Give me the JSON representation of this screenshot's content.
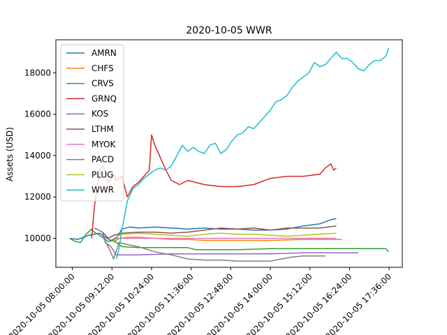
{
  "chart_data": {
    "type": "line",
    "title": "2020-10-05 WWR",
    "xlabel": "",
    "ylabel": "Assets (USD)",
    "x_ticks": [
      "2020-10-05 08:00:00",
      "2020-10-05 09:12:00",
      "2020-10-05 10:24:00",
      "2020-10-05 11:36:00",
      "2020-10-05 12:48:00",
      "2020-10-05 14:00:00",
      "2020-10-05 15:12:00",
      "2020-10-05 16:24:00",
      "2020-10-05 17:36:00"
    ],
    "y_ticks": [
      10000,
      12000,
      14000,
      16000,
      18000
    ],
    "x_range": [
      "07:30",
      "18:00"
    ],
    "ylim": [
      8600,
      19600
    ],
    "grid": false,
    "legend": "upper-left",
    "series": [
      {
        "name": "AMRN",
        "color": "#1f77b4",
        "points": [
          [
            "07:55",
            10000
          ],
          [
            "08:10",
            9950
          ],
          [
            "08:30",
            10150
          ],
          [
            "08:50",
            10250
          ],
          [
            "09:00",
            10050
          ],
          [
            "09:10",
            9900
          ],
          [
            "09:20",
            10000
          ],
          [
            "09:30",
            10450
          ],
          [
            "09:45",
            10550
          ],
          [
            "10:00",
            10500
          ],
          [
            "10:30",
            10550
          ],
          [
            "11:00",
            10500
          ],
          [
            "11:30",
            10450
          ],
          [
            "12:00",
            10500
          ],
          [
            "12:30",
            10450
          ],
          [
            "13:00",
            10450
          ],
          [
            "13:30",
            10400
          ],
          [
            "14:00",
            10400
          ],
          [
            "14:30",
            10450
          ],
          [
            "15:00",
            10600
          ],
          [
            "15:30",
            10700
          ],
          [
            "15:50",
            10900
          ],
          [
            "16:00",
            10950
          ]
        ]
      },
      {
        "name": "CHFS",
        "color": "#ff7f0e",
        "points": [
          [
            "09:15",
            9800
          ],
          [
            "09:25",
            10000
          ],
          [
            "09:40",
            10050
          ],
          [
            "10:00",
            10050
          ],
          [
            "10:30",
            10000
          ],
          [
            "11:00",
            9950
          ],
          [
            "11:30",
            9950
          ],
          [
            "12:00",
            9900
          ],
          [
            "13:00",
            9900
          ],
          [
            "14:00",
            9900
          ],
          [
            "15:00",
            9950
          ],
          [
            "16:00",
            9950
          ],
          [
            "16:10",
            9950
          ]
        ]
      },
      {
        "name": "CRVS",
        "color": "#2ca02c",
        "points": [
          [
            "07:55",
            10000
          ],
          [
            "08:05",
            9850
          ],
          [
            "08:15",
            9800
          ],
          [
            "08:25",
            10200
          ],
          [
            "08:35",
            10450
          ],
          [
            "08:40",
            10300
          ],
          [
            "08:55",
            10050
          ],
          [
            "09:05",
            9850
          ],
          [
            "09:15",
            9900
          ],
          [
            "09:30",
            9600
          ],
          [
            "10:00",
            9550
          ],
          [
            "10:30",
            9550
          ],
          [
            "11:00",
            9550
          ],
          [
            "11:30",
            9550
          ],
          [
            "11:45",
            9450
          ],
          [
            "12:00",
            9450
          ],
          [
            "13:00",
            9450
          ],
          [
            "14:00",
            9500
          ],
          [
            "15:00",
            9500
          ],
          [
            "16:00",
            9500
          ],
          [
            "17:00",
            9500
          ],
          [
            "17:30",
            9500
          ],
          [
            "17:35",
            9350
          ]
        ]
      },
      {
        "name": "GRNQ",
        "color": "#d62728",
        "points": [
          [
            "08:35",
            10000
          ],
          [
            "08:40",
            11500
          ],
          [
            "08:45",
            12500
          ],
          [
            "08:50",
            13300
          ],
          [
            "08:55",
            13500
          ],
          [
            "09:00",
            13200
          ],
          [
            "09:05",
            12700
          ],
          [
            "09:10",
            12900
          ],
          [
            "09:15",
            13100
          ],
          [
            "09:20",
            12800
          ],
          [
            "09:30",
            13000
          ],
          [
            "09:40",
            12000
          ],
          [
            "09:50",
            12500
          ],
          [
            "10:00",
            12700
          ],
          [
            "10:10",
            13000
          ],
          [
            "10:20",
            13300
          ],
          [
            "10:24",
            15000
          ],
          [
            "10:30",
            14500
          ],
          [
            "10:40",
            13900
          ],
          [
            "10:50",
            13300
          ],
          [
            "11:00",
            12800
          ],
          [
            "11:15",
            12600
          ],
          [
            "11:30",
            12800
          ],
          [
            "11:45",
            12700
          ],
          [
            "12:00",
            12600
          ],
          [
            "12:30",
            12500
          ],
          [
            "13:00",
            12500
          ],
          [
            "13:30",
            12600
          ],
          [
            "14:00",
            12900
          ],
          [
            "14:30",
            13000
          ],
          [
            "15:00",
            13000
          ],
          [
            "15:30",
            13100
          ],
          [
            "15:40",
            13400
          ],
          [
            "15:50",
            13600
          ],
          [
            "15:55",
            13300
          ],
          [
            "16:00",
            13400
          ]
        ]
      },
      {
        "name": "KOS",
        "color": "#9467bd",
        "points": [
          [
            "08:40",
            10500
          ],
          [
            "08:55",
            10300
          ],
          [
            "09:00",
            9800
          ],
          [
            "09:10",
            9600
          ],
          [
            "09:20",
            9200
          ],
          [
            "10:00",
            9200
          ],
          [
            "11:00",
            9250
          ],
          [
            "12:00",
            9250
          ],
          [
            "13:00",
            9250
          ],
          [
            "14:00",
            9250
          ],
          [
            "15:00",
            9300
          ],
          [
            "16:00",
            9300
          ],
          [
            "16:40",
            9300
          ]
        ]
      },
      {
        "name": "LTHM",
        "color": "#8c564b",
        "points": [
          [
            "08:55",
            10300
          ],
          [
            "09:05",
            10000
          ],
          [
            "09:15",
            10150
          ],
          [
            "09:30",
            10250
          ],
          [
            "10:00",
            10300
          ],
          [
            "10:30",
            10300
          ],
          [
            "11:00",
            10250
          ],
          [
            "11:30",
            10300
          ],
          [
            "12:00",
            10400
          ],
          [
            "12:30",
            10500
          ],
          [
            "13:00",
            10450
          ],
          [
            "13:30",
            10500
          ],
          [
            "14:00",
            10400
          ],
          [
            "14:30",
            10500
          ],
          [
            "15:00",
            10500
          ],
          [
            "15:30",
            10500
          ],
          [
            "16:00",
            10600
          ]
        ]
      },
      {
        "name": "MYOK",
        "color": "#e377c2",
        "points": [
          [
            "09:20",
            10000
          ],
          [
            "10:00",
            10000
          ],
          [
            "11:00",
            10000
          ],
          [
            "12:00",
            10000
          ],
          [
            "13:00",
            10000
          ],
          [
            "14:00",
            10000
          ],
          [
            "15:00",
            10000
          ],
          [
            "16:00",
            10000
          ]
        ]
      },
      {
        "name": "PACD",
        "color": "#7f7f7f",
        "points": [
          [
            "08:55",
            10100
          ],
          [
            "09:05",
            9600
          ],
          [
            "09:15",
            9000
          ],
          [
            "09:25",
            9800
          ],
          [
            "09:40",
            9700
          ],
          [
            "10:00",
            9600
          ],
          [
            "10:30",
            9350
          ],
          [
            "11:00",
            9200
          ],
          [
            "11:30",
            9000
          ],
          [
            "12:00",
            8950
          ],
          [
            "12:30",
            8950
          ],
          [
            "13:00",
            8900
          ],
          [
            "13:30",
            8900
          ],
          [
            "14:00",
            8900
          ],
          [
            "14:20",
            9000
          ],
          [
            "14:40",
            9100
          ],
          [
            "15:00",
            9150
          ],
          [
            "15:40",
            9150
          ]
        ]
      },
      {
        "name": "PLUG",
        "color": "#bcbd22",
        "points": [
          [
            "09:15",
            10000
          ],
          [
            "09:30",
            10200
          ],
          [
            "10:00",
            10250
          ],
          [
            "10:30",
            10200
          ],
          [
            "11:00",
            10150
          ],
          [
            "11:30",
            10100
          ],
          [
            "12:00",
            10200
          ],
          [
            "12:30",
            10250
          ],
          [
            "13:00",
            10200
          ],
          [
            "13:30",
            10200
          ],
          [
            "14:00",
            10150
          ],
          [
            "14:30",
            10100
          ],
          [
            "15:00",
            10150
          ],
          [
            "15:30",
            10200
          ],
          [
            "16:00",
            10250
          ]
        ]
      },
      {
        "name": "WWR",
        "color": "#17becf",
        "points": [
          [
            "09:20",
            9000
          ],
          [
            "09:25",
            9500
          ],
          [
            "09:30",
            10400
          ],
          [
            "09:40",
            11800
          ],
          [
            "09:50",
            12400
          ],
          [
            "10:00",
            12600
          ],
          [
            "10:10",
            12900
          ],
          [
            "10:20",
            13100
          ],
          [
            "10:30",
            13300
          ],
          [
            "10:40",
            13400
          ],
          [
            "10:50",
            13300
          ],
          [
            "11:00",
            13500
          ],
          [
            "11:10",
            14000
          ],
          [
            "11:20",
            14500
          ],
          [
            "11:30",
            14200
          ],
          [
            "11:40",
            14400
          ],
          [
            "11:50",
            14200
          ],
          [
            "12:00",
            14100
          ],
          [
            "12:10",
            14500
          ],
          [
            "12:20",
            14600
          ],
          [
            "12:30",
            14100
          ],
          [
            "12:40",
            14300
          ],
          [
            "12:50",
            14700
          ],
          [
            "13:00",
            15000
          ],
          [
            "13:10",
            15100
          ],
          [
            "13:20",
            15400
          ],
          [
            "13:30",
            15300
          ],
          [
            "13:40",
            15600
          ],
          [
            "13:50",
            15900
          ],
          [
            "14:00",
            16200
          ],
          [
            "14:10",
            16600
          ],
          [
            "14:20",
            16700
          ],
          [
            "14:30",
            16900
          ],
          [
            "14:40",
            17300
          ],
          [
            "14:50",
            17600
          ],
          [
            "15:00",
            17800
          ],
          [
            "15:10",
            18000
          ],
          [
            "15:20",
            18500
          ],
          [
            "15:30",
            18300
          ],
          [
            "15:40",
            18400
          ],
          [
            "15:50",
            18700
          ],
          [
            "16:00",
            19000
          ],
          [
            "16:10",
            18700
          ],
          [
            "16:20",
            18700
          ],
          [
            "16:30",
            18500
          ],
          [
            "16:40",
            18200
          ],
          [
            "16:50",
            18100
          ],
          [
            "17:00",
            18400
          ],
          [
            "17:10",
            18600
          ],
          [
            "17:20",
            18600
          ],
          [
            "17:30",
            18800
          ],
          [
            "17:35",
            19200
          ]
        ]
      }
    ]
  }
}
